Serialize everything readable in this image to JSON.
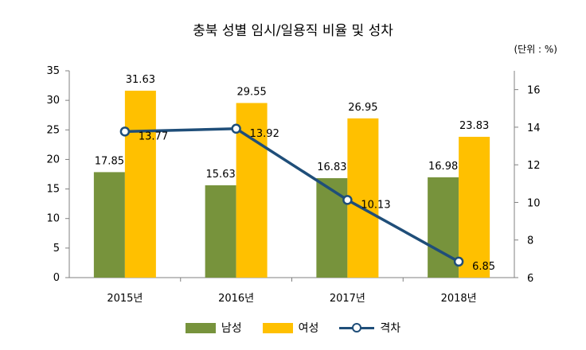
{
  "chart_data": {
    "type": "bar",
    "title": "충북 성별 임시/일용직 비율 및 성차",
    "unit_label": "(단위 : %)",
    "categories": [
      "2015년",
      "2016년",
      "2017년",
      "2018년"
    ],
    "series": [
      {
        "name": "남성",
        "type": "bar",
        "axis": "left",
        "color": "#77933c",
        "values": [
          17.85,
          15.63,
          16.83,
          16.98
        ],
        "labels": [
          "17.85",
          "15.63",
          "16.83",
          "16.98"
        ]
      },
      {
        "name": "여성",
        "type": "bar",
        "axis": "left",
        "color": "#ffc000",
        "values": [
          31.63,
          29.55,
          26.95,
          23.83
        ],
        "labels": [
          "31.63",
          "29.55",
          "26.95",
          "23.83"
        ]
      },
      {
        "name": "격차",
        "type": "line",
        "axis": "right",
        "color": "#1f4e79",
        "values": [
          13.77,
          13.92,
          10.13,
          6.85
        ],
        "labels": [
          "13.77",
          "13.92",
          "10.13",
          "6.85"
        ]
      }
    ],
    "y_left": {
      "min": 0,
      "max": 35,
      "ticks": [
        "0",
        "5",
        "10",
        "15",
        "20",
        "25",
        "30",
        "35"
      ]
    },
    "y_right": {
      "min": 6,
      "max": 17,
      "ticks": [
        "6",
        "8",
        "10",
        "12",
        "14",
        "16"
      ]
    },
    "grid": false,
    "legend_position": "bottom"
  }
}
